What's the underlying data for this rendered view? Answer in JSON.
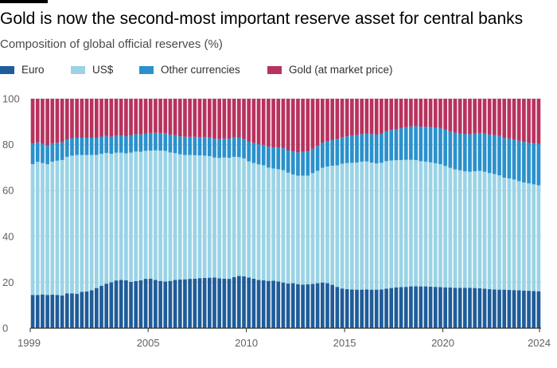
{
  "title": "Gold is now the second-most important reserve asset for central banks",
  "subtitle": "Composition of global official reserves (%)",
  "colors": {
    "euro": "#1f5c99",
    "usd": "#9ad3e6",
    "other": "#2a91cc",
    "gold": "#b8325e",
    "grid": "#d9d9d9",
    "axis": "#33302e"
  },
  "legend": [
    {
      "name": "Euro",
      "color": "#1f5c99"
    },
    {
      "name": "US$",
      "color": "#9ad3e6"
    },
    {
      "name": "Other currencies",
      "color": "#2a91cc"
    },
    {
      "name": "Gold (at market price)",
      "color": "#b8325e"
    }
  ],
  "chart_data": {
    "type": "bar",
    "stacked": true,
    "title": "Gold is now the second-most important reserve asset for central banks",
    "subtitle": "Composition of global official reserves (%)",
    "xlabel": "",
    "ylabel": "",
    "ylim": [
      0,
      100
    ],
    "yticks": [
      "0",
      "20",
      "40",
      "60",
      "80",
      "100"
    ],
    "xticks": [
      "1999",
      "2005",
      "2010",
      "2015",
      "2020",
      "2024"
    ],
    "grid": true,
    "legend_position": "top",
    "categories": [
      "1999 Q1",
      "1999 Q2",
      "1999 Q3",
      "1999 Q4",
      "2000 Q1",
      "2000 Q2",
      "2000 Q3",
      "2000 Q4",
      "2001 Q1",
      "2001 Q2",
      "2001 Q3",
      "2001 Q4",
      "2002 Q1",
      "2002 Q2",
      "2002 Q3",
      "2002 Q4",
      "2003 Q1",
      "2003 Q2",
      "2003 Q3",
      "2003 Q4",
      "2004 Q1",
      "2004 Q2",
      "2004 Q3",
      "2004 Q4",
      "2005 Q1",
      "2005 Q2",
      "2005 Q3",
      "2005 Q4",
      "2006 Q1",
      "2006 Q2",
      "2006 Q3",
      "2006 Q4",
      "2007 Q1",
      "2007 Q2",
      "2007 Q3",
      "2007 Q4",
      "2008 Q1",
      "2008 Q2",
      "2008 Q3",
      "2008 Q4",
      "2009 Q1",
      "2009 Q2",
      "2009 Q3",
      "2009 Q4",
      "2010 Q1",
      "2010 Q2",
      "2010 Q3",
      "2010 Q4",
      "2011 Q1",
      "2011 Q2",
      "2011 Q3",
      "2011 Q4",
      "2012 Q1",
      "2012 Q2",
      "2012 Q3",
      "2012 Q4",
      "2013 Q1",
      "2013 Q2",
      "2013 Q3",
      "2013 Q4",
      "2014 Q1",
      "2014 Q2",
      "2014 Q3",
      "2014 Q4",
      "2015 Q1",
      "2015 Q2",
      "2015 Q3",
      "2015 Q4",
      "2016 Q1",
      "2016 Q2",
      "2016 Q3",
      "2016 Q4",
      "2017 Q1",
      "2017 Q2",
      "2017 Q3",
      "2017 Q4",
      "2018 Q1",
      "2018 Q2",
      "2018 Q3",
      "2018 Q4",
      "2019 Q1",
      "2019 Q2",
      "2019 Q3",
      "2019 Q4",
      "2020 Q1",
      "2020 Q2",
      "2020 Q3",
      "2020 Q4",
      "2021 Q1",
      "2021 Q2",
      "2021 Q3",
      "2021 Q4",
      "2022 Q1",
      "2022 Q2",
      "2022 Q3",
      "2022 Q4",
      "2023 Q1",
      "2023 Q2",
      "2023 Q3",
      "2023 Q4",
      "2024 Q1",
      "2024 Q2",
      "2024 Q3",
      "2024 Q4"
    ],
    "series": [
      {
        "name": "Euro",
        "color": "#1f5c99",
        "values": [
          14.5,
          14.5,
          14.7,
          14.5,
          14.6,
          14.5,
          14.3,
          15.2,
          15.2,
          15.0,
          15.8,
          16.0,
          16.5,
          17.5,
          18.5,
          19.4,
          20.0,
          20.8,
          21.0,
          20.9,
          20.2,
          20.5,
          20.9,
          21.5,
          21.6,
          21.0,
          20.6,
          20.3,
          20.6,
          21.0,
          21.2,
          21.3,
          21.5,
          21.6,
          21.8,
          21.9,
          22.0,
          22.1,
          21.7,
          21.6,
          21.5,
          22.3,
          22.8,
          22.6,
          22.1,
          21.6,
          21.0,
          20.9,
          20.6,
          20.7,
          20.4,
          19.9,
          19.5,
          19.6,
          19.2,
          19.0,
          19.1,
          19.3,
          19.6,
          19.9,
          19.6,
          18.9,
          18.0,
          17.3,
          17.0,
          16.9,
          16.8,
          16.8,
          16.9,
          16.8,
          16.8,
          16.9,
          17.2,
          17.5,
          17.8,
          17.9,
          18.0,
          18.2,
          18.3,
          18.2,
          18.2,
          18.1,
          18.0,
          17.9,
          17.8,
          17.7,
          17.6,
          17.6,
          17.6,
          17.6,
          17.5,
          17.4,
          17.2,
          17.0,
          16.9,
          16.8,
          16.8,
          16.7,
          16.6,
          16.5,
          16.4,
          16.3,
          16.2,
          16.1
        ]
      },
      {
        "name": "US$",
        "color": "#9ad3e6",
        "values": [
          57.0,
          58.0,
          57.3,
          57.0,
          58.0,
          58.5,
          59.0,
          59.5,
          60.0,
          60.5,
          59.7,
          59.5,
          59.0,
          58.0,
          57.5,
          57.0,
          56.0,
          55.7,
          55.5,
          55.3,
          56.3,
          56.5,
          56.0,
          55.8,
          55.8,
          56.5,
          56.8,
          57.0,
          56.0,
          55.3,
          54.6,
          54.2,
          54.0,
          53.8,
          53.5,
          53.3,
          53.0,
          52.3,
          52.5,
          52.8,
          52.8,
          52.4,
          51.8,
          51.4,
          50.6,
          50.4,
          50.4,
          50.1,
          49.4,
          48.9,
          48.9,
          49.0,
          48.3,
          47.4,
          47.3,
          47.5,
          47.4,
          48.3,
          49.0,
          50.0,
          50.9,
          51.9,
          53.0,
          54.4,
          55.0,
          55.2,
          55.4,
          55.8,
          55.8,
          55.4,
          55.0,
          55.2,
          55.6,
          55.6,
          55.4,
          55.4,
          55.4,
          55.2,
          55.0,
          54.6,
          54.4,
          54.2,
          53.9,
          53.6,
          52.9,
          52.2,
          51.6,
          51.2,
          50.8,
          50.6,
          50.9,
          51.2,
          51.0,
          50.6,
          50.3,
          49.8,
          48.8,
          48.6,
          48.2,
          47.6,
          47.1,
          46.8,
          46.5,
          46.2
        ]
      },
      {
        "name": "Other currencies",
        "color": "#2a91cc",
        "values": [
          9.0,
          8.5,
          8.3,
          8.2,
          8.0,
          7.8,
          7.7,
          7.6,
          7.6,
          7.5,
          7.5,
          7.5,
          7.5,
          7.5,
          7.5,
          7.4,
          7.4,
          7.4,
          7.5,
          7.5,
          7.5,
          7.6,
          7.6,
          7.6,
          7.7,
          7.7,
          7.7,
          7.7,
          7.8,
          7.8,
          7.8,
          7.9,
          7.9,
          8.0,
          8.0,
          8.1,
          8.1,
          8.2,
          8.2,
          8.3,
          8.3,
          8.4,
          8.4,
          8.5,
          8.6,
          8.7,
          8.8,
          8.9,
          9.1,
          9.2,
          9.4,
          9.6,
          9.8,
          10.0,
          10.1,
          10.3,
          10.5,
          10.6,
          10.8,
          11.0,
          11.1,
          11.3,
          11.4,
          11.5,
          11.6,
          11.8,
          11.9,
          12.0,
          12.2,
          12.4,
          12.6,
          12.8,
          13.0,
          13.3,
          13.6,
          13.9,
          14.2,
          14.5,
          14.8,
          15.0,
          15.2,
          15.4,
          15.6,
          15.7,
          15.8,
          15.9,
          16.0,
          16.1,
          16.2,
          16.3,
          16.4,
          16.5,
          16.6,
          16.8,
          17.0,
          17.2,
          17.3,
          17.4,
          17.5,
          17.6,
          17.7,
          17.8,
          17.9,
          18.0
        ]
      },
      {
        "name": "Gold (at market price)",
        "color": "#b8325e",
        "values": [
          19.5,
          19.0,
          19.7,
          20.3,
          19.4,
          19.2,
          19.0,
          17.7,
          17.2,
          17.0,
          17.0,
          17.0,
          17.0,
          17.0,
          16.5,
          16.2,
          16.6,
          16.1,
          16.0,
          16.3,
          16.0,
          15.4,
          15.5,
          15.1,
          14.9,
          14.8,
          14.9,
          15.0,
          15.6,
          15.9,
          16.4,
          16.6,
          16.6,
          16.6,
          16.7,
          16.7,
          16.9,
          17.4,
          17.6,
          17.3,
          17.4,
          16.9,
          17.0,
          17.5,
          18.7,
          19.3,
          19.8,
          20.1,
          20.9,
          21.2,
          21.3,
          21.5,
          22.4,
          23.0,
          23.4,
          23.2,
          23.0,
          21.8,
          20.6,
          19.1,
          18.4,
          17.9,
          17.6,
          16.8,
          16.4,
          16.1,
          15.9,
          15.4,
          15.1,
          15.4,
          15.6,
          15.1,
          14.2,
          13.6,
          13.2,
          12.8,
          12.4,
          12.1,
          11.9,
          12.2,
          12.2,
          12.3,
          12.5,
          12.8,
          13.5,
          14.2,
          14.8,
          15.1,
          15.4,
          15.5,
          15.2,
          14.9,
          15.2,
          15.6,
          15.8,
          16.2,
          17.1,
          17.3,
          17.7,
          18.3,
          18.8,
          19.1,
          19.4,
          19.7
        ]
      }
    ]
  }
}
